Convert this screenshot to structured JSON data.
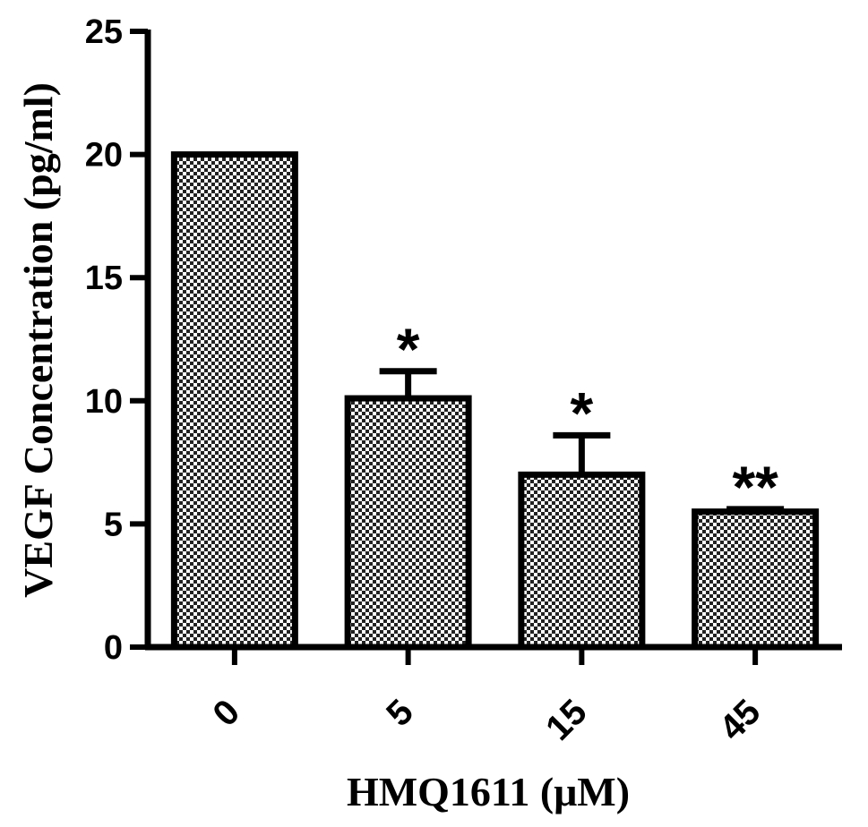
{
  "chart_data": {
    "type": "bar",
    "categories": [
      "0",
      "5",
      "15",
      "45"
    ],
    "values": [
      20.0,
      10.1,
      7.0,
      5.5
    ],
    "errors": [
      0,
      1.1,
      1.6,
      0.1
    ],
    "significance": [
      "",
      "*",
      "*",
      "**"
    ],
    "xlabel": "HMQ1611 (μM)",
    "ylabel": "VEGF Concentration (pg/ml)",
    "ylim": [
      0,
      25
    ],
    "yticks": [
      "0",
      "5",
      "10",
      "15",
      "20",
      "25"
    ],
    "grid": false,
    "bar_pattern": "checkered",
    "colors": {
      "bar_fill_dark": "#222222",
      "bar_fill_light": "#ffffff",
      "stroke": "#000000"
    }
  }
}
